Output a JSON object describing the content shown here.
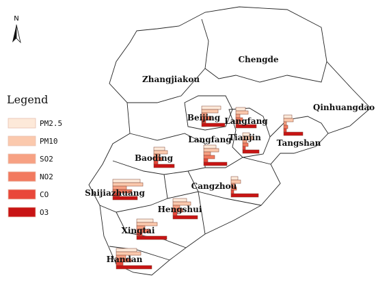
{
  "north": "N",
  "legend": {
    "title": "Legend",
    "items": [
      {
        "label": "PM2.5",
        "color": "#fde9d9"
      },
      {
        "label": "PM10",
        "color": "#fbc9ad"
      },
      {
        "label": "SO2",
        "color": "#f7a183"
      },
      {
        "label": "NO2",
        "color": "#f27a5f"
      },
      {
        "label": "CO",
        "color": "#e9483a"
      },
      {
        "label": "O3",
        "color": "#c81414"
      }
    ]
  },
  "regions": [
    "Zhangjiakou",
    "Chengde",
    "Qinhuangdao"
  ],
  "cities": [
    {
      "name": "Beijing",
      "values": [
        28,
        24,
        8,
        14,
        6,
        34
      ]
    },
    {
      "name": "Langfang",
      "values": [
        14,
        18,
        6,
        10,
        4,
        30
      ]
    },
    {
      "name": "Tianjin",
      "values": [
        10,
        16,
        6,
        8,
        4,
        24
      ]
    },
    {
      "name": "Tangshan",
      "values": [
        12,
        14,
        4,
        6,
        4,
        28
      ]
    },
    {
      "name": "Langfang",
      "values": [
        18,
        22,
        10,
        16,
        6,
        34
      ]
    },
    {
      "name": "Baoding",
      "values": [
        16,
        20,
        8,
        12,
        6,
        30
      ]
    },
    {
      "name": "Shijiazhuang",
      "values": [
        40,
        44,
        20,
        28,
        10,
        36
      ]
    },
    {
      "name": "Cangzhou",
      "values": [
        10,
        14,
        6,
        8,
        4,
        40
      ]
    },
    {
      "name": "Hengshui",
      "values": [
        20,
        26,
        10,
        14,
        6,
        36
      ]
    },
    {
      "name": "Xingtai",
      "values": [
        24,
        30,
        12,
        20,
        8,
        44
      ]
    },
    {
      "name": "Handan",
      "values": [
        30,
        36,
        14,
        22,
        10,
        52
      ]
    }
  ]
}
